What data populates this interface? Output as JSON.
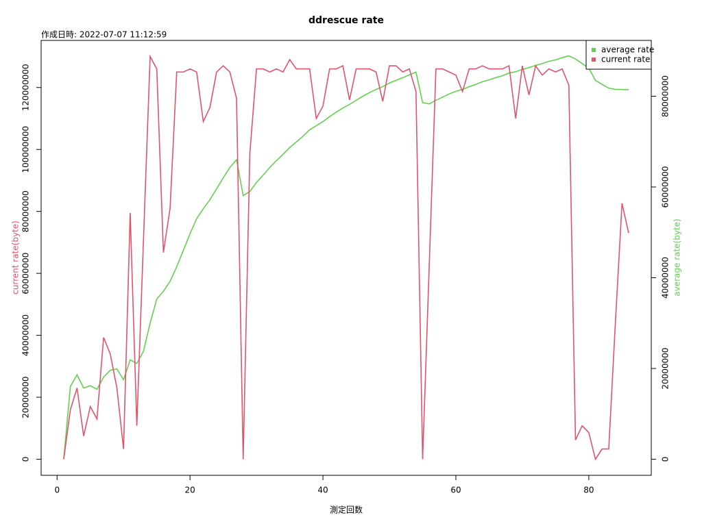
{
  "chart_data": {
    "type": "line",
    "title": "ddrescue rate",
    "subtitle": "作成日時: 2022-07-07 11:12:59",
    "xlabel": "測定回数",
    "ylabel": "current rate(byte)",
    "y2label": "average rate(byte)",
    "legend": "top-right",
    "x": [
      1,
      2,
      3,
      4,
      5,
      6,
      7,
      8,
      9,
      10,
      11,
      12,
      13,
      14,
      15,
      16,
      17,
      18,
      19,
      20,
      21,
      22,
      23,
      24,
      25,
      26,
      27,
      28,
      29,
      30,
      31,
      32,
      33,
      34,
      35,
      36,
      37,
      38,
      39,
      40,
      41,
      42,
      43,
      44,
      45,
      46,
      47,
      48,
      49,
      50,
      51,
      52,
      53,
      54,
      55,
      56,
      57,
      58,
      59,
      60,
      61,
      62,
      63,
      64,
      65,
      66,
      67,
      68,
      69,
      70,
      71,
      72,
      73,
      74,
      75,
      76,
      77,
      78,
      79,
      80,
      81,
      82,
      83,
      84,
      85,
      86
    ],
    "xlim": [
      -2.4,
      89.4
    ],
    "xticks": [
      0,
      20,
      40,
      60,
      80
    ],
    "ylim": [
      -5200000,
      135200000
    ],
    "yticks": [
      0,
      20000000,
      40000000,
      60000000,
      80000000,
      100000000,
      120000000
    ],
    "y2lim": [
      -3550000,
      92300000
    ],
    "y2ticks": [
      0,
      20000000,
      40000000,
      60000000,
      80000000
    ],
    "series": [
      {
        "name": "average rate",
        "color": "#61D04F",
        "axis": "y2",
        "values": [
          0,
          16000000,
          18600000,
          15700000,
          16200000,
          15400000,
          18100000,
          19600000,
          19900000,
          17500000,
          21900000,
          21100000,
          23800000,
          30000000,
          35300000,
          37000000,
          39200000,
          42400000,
          46000000,
          49700000,
          53000000,
          55200000,
          57200000,
          59600000,
          62000000,
          64300000,
          66000000,
          58100000,
          59000000,
          61000000,
          62600000,
          64300000,
          65800000,
          67200000,
          68700000,
          69900000,
          71200000,
          72600000,
          73500000,
          74400000,
          75500000,
          76500000,
          77400000,
          78200000,
          79100000,
          80000000,
          80800000,
          81500000,
          82100000,
          82900000,
          83500000,
          84100000,
          84700000,
          85300000,
          78600000,
          78300000,
          79100000,
          79800000,
          80500000,
          81100000,
          81500000,
          82100000,
          82600000,
          83200000,
          83600000,
          84100000,
          84500000,
          85100000,
          85400000,
          85900000,
          86300000,
          86800000,
          87200000,
          87700000,
          88000000,
          88500000,
          88900000,
          88200000,
          87200000,
          86200000,
          83500000,
          82600000,
          81800000,
          81500000,
          81500000,
          81400000
        ]
      },
      {
        "name": "current rate",
        "color": "#DF536B",
        "axis": "y",
        "values": [
          0,
          16000000,
          23000000,
          7500000,
          17000000,
          13000000,
          39300000,
          34000000,
          23000000,
          3300000,
          79500000,
          10800000,
          71000000,
          130000000,
          126000000,
          66700000,
          81000000,
          125000000,
          125000000,
          126000000,
          125000000,
          109000000,
          113600000,
          125000000,
          127000000,
          125000000,
          116500000,
          0,
          98600000,
          126000000,
          126000000,
          125000000,
          126000000,
          125000000,
          129000000,
          126000000,
          126000000,
          126000000,
          110000000,
          114000000,
          126000000,
          126000000,
          127000000,
          116000000,
          126000000,
          126000000,
          126000000,
          125000000,
          115500000,
          127000000,
          127000000,
          125000000,
          126000000,
          118700000,
          0,
          63000000,
          126000000,
          126000000,
          125000000,
          124000000,
          118700000,
          126000000,
          126000000,
          127000000,
          126000000,
          126000000,
          126000000,
          127000000,
          110000000,
          127000000,
          117600000,
          127000000,
          124000000,
          126000000,
          125000000,
          126000000,
          120700000,
          6200000,
          10800000,
          8600000,
          0,
          3300000,
          3300000,
          44000000,
          82600000,
          73000000
        ]
      }
    ]
  }
}
